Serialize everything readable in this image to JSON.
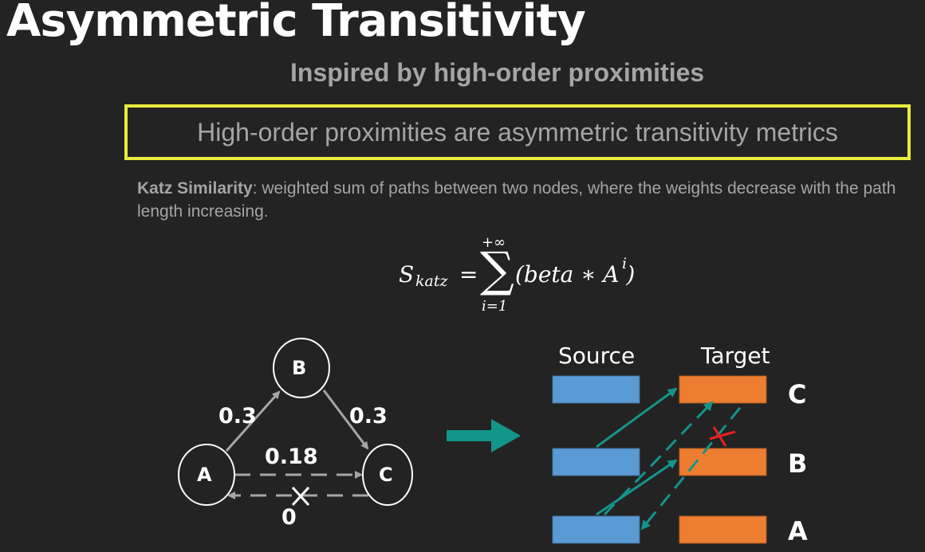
{
  "title": "Asymmetric Transitivity",
  "subtitle": "Inspired by high-order proximities",
  "highlight": "High-order proximities are asymmetric transitivity metrics",
  "katz": {
    "term": "Katz Similarity",
    "definition": ": weighted sum of paths between two nodes, where the weights decrease with the path length increasing."
  },
  "formula": {
    "symbol": "S",
    "subscript": "katz",
    "equals": "=",
    "sigma": "∑",
    "upper": "+∞",
    "lower": "i=1",
    "body": "(beta ∗ A )",
    "exponent": "i"
  },
  "graph": {
    "nodes": {
      "a": "A",
      "b": "B",
      "c": "C"
    },
    "edge_ab": "0.3",
    "edge_bc": "0.3",
    "edge_ac": "0.18",
    "edge_ca": "0"
  },
  "embedding": {
    "source_label": "Source",
    "target_label": "Target",
    "row_labels": {
      "c": "C",
      "b": "B",
      "a": "A"
    }
  },
  "colors": {
    "background": "#232323",
    "highlight_border": "#e8ec3d",
    "source_fill": "#5b9bd5",
    "target_fill": "#ed7d31",
    "arrow_teal": "#13958a",
    "cross_red": "#e82020",
    "graph_edge": "#a6a6a6"
  }
}
